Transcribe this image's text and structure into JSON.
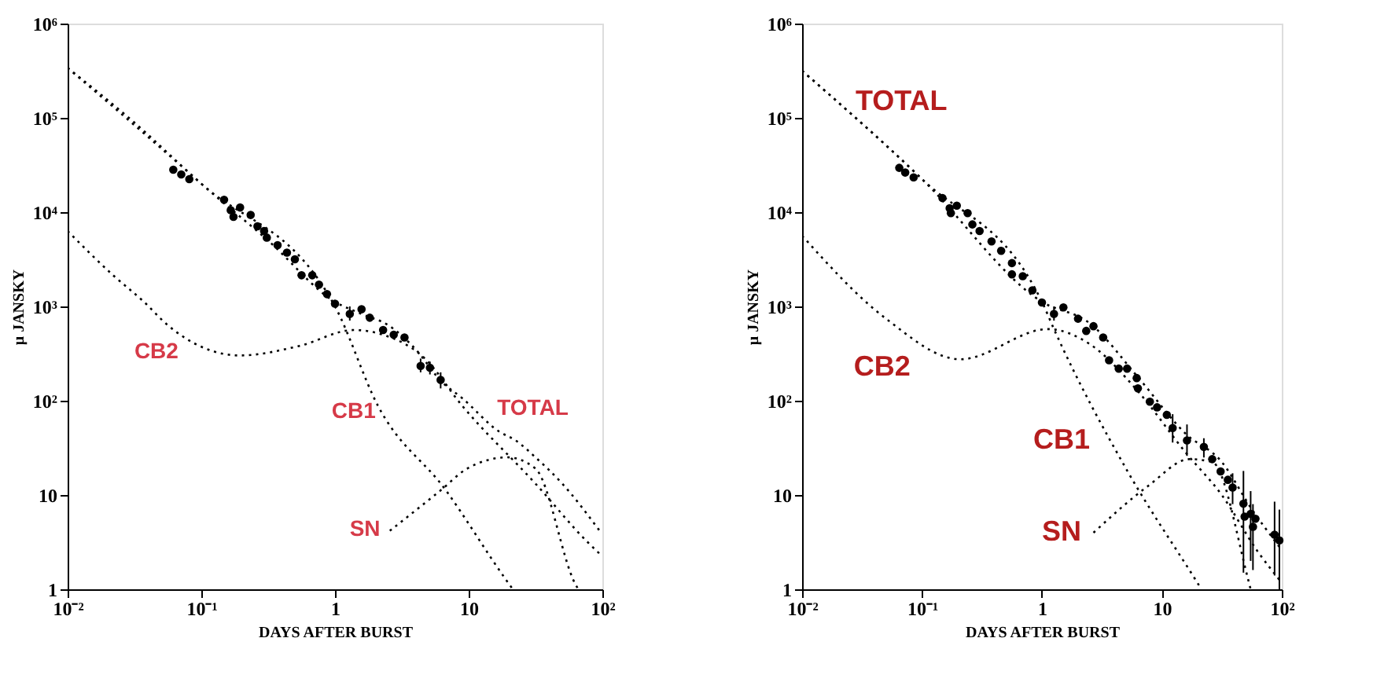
{
  "chart_data": [
    {
      "type": "line",
      "xlabel": "DAYS AFTER BURST",
      "ylabel": "μ JANSKY",
      "line_style": "dotted",
      "grid": false,
      "xlim": [
        0.01,
        100
      ],
      "ylim": [
        1,
        1000000
      ],
      "xticks": [
        {
          "value": 0.01,
          "label": "10⁻²"
        },
        {
          "value": 0.1,
          "label": "10⁻¹"
        },
        1,
        10,
        {
          "value": 100,
          "label": "10²"
        }
      ],
      "yticks": [
        1,
        10,
        {
          "value": 100,
          "label": "10²"
        },
        {
          "value": 1000,
          "label": "10³"
        },
        {
          "value": 10000,
          "label": "10⁴"
        },
        {
          "value": 100000,
          "label": "10⁵"
        },
        {
          "value": 1000000,
          "label": "10⁶"
        }
      ],
      "log": "xy",
      "series": [
        {
          "color": "#000000",
          "x": [
            0.01,
            0.0316,
            0.1,
            0.316,
            1,
            1.58,
            2.51,
            3.98,
            6.31,
            8.91,
            17,
            22.4,
            31.6,
            50.1,
            95.5
          ],
          "values": [
            339000,
            89000,
            20000,
            5000,
            1120,
            832,
            631,
            355,
            158,
            107,
            46.8,
            38,
            25.1,
            13.2,
            4.17
          ]
        },
        {
          "color": "#000000",
          "x": [
            0.01,
            0.1,
            1,
            2.09,
            6.76,
            18.6,
            21.4
          ],
          "values": [
            339000,
            20000,
            1000,
            89,
            11.2,
            1.32,
            1.0
          ]
        },
        {
          "color": "#000000",
          "x": [
            0.01,
            0.0219,
            0.0372,
            0.0562,
            0.195,
            0.537,
            1.38,
            2.29,
            4.68,
            8.91,
            31.6,
            77.6,
            100
          ],
          "values": [
            6310,
            2140,
            1120,
            631,
            302,
            380,
            562,
            501,
            282,
            89,
            13.2,
            3.16,
            2.24
          ]
        },
        {
          "color": "#000000",
          "x": [
            2.57,
            6.17,
            9.77,
            19.5,
            31.6,
            63.1,
            66.1
          ],
          "values": [
            4.17,
            11.2,
            19.1,
            25.1,
            19.1,
            1.12,
            1.0
          ]
        },
        {
          "type": "scatter",
          "color": "#000000",
          "marker": "circle",
          "x": [
            0.0617,
            0.0708,
            0.0813,
            0.148,
            0.166,
            0.174,
            0.195,
            0.234,
            0.263,
            0.295,
            0.309,
            0.372,
            0.437,
            0.501,
            0.562,
            0.676,
            0.759,
            0.871,
            1.0,
            1.29,
            1.58,
            1.82,
            2.29,
            2.75,
            3.31,
            4.37,
            5.13,
            6.17
          ],
          "values": [
            28200,
            25100,
            22400,
            13500,
            10500,
            8910,
            11200,
            9330,
            7080,
            6310,
            5370,
            4470,
            3720,
            3160,
            2140,
            2140,
            1700,
            1350,
            1070,
            832,
            933,
            759,
            562,
            501,
            468,
            234,
            224,
            166
          ],
          "errors": [
            null,
            null,
            null,
            null,
            null,
            null,
            null,
            null,
            null,
            null,
            null,
            null,
            null,
            null,
            null,
            null,
            null,
            null,
            null,
            [
              708,
              1000
            ],
            null,
            null,
            null,
            null,
            null,
            [
              200,
              280
            ],
            [
              190,
              260
            ],
            [
              135,
              200
            ]
          ]
        }
      ],
      "annotations": [
        "CB2",
        "CB1",
        "TOTAL",
        "SN"
      ]
    },
    {
      "type": "line",
      "xlabel": "DAYS AFTER BURST",
      "ylabel": "μ JANSKY",
      "line_style": "dotted",
      "grid": false,
      "xlim": [
        0.01,
        100
      ],
      "ylim": [
        1,
        1000000
      ],
      "xticks": [
        {
          "value": 0.01,
          "label": "10⁻²"
        },
        {
          "value": 0.1,
          "label": "10⁻¹"
        },
        1,
        10,
        {
          "value": 100,
          "label": "10²"
        }
      ],
      "yticks": [
        1,
        10,
        {
          "value": 100,
          "label": "10²"
        },
        {
          "value": 1000,
          "label": "10³"
        },
        {
          "value": 10000,
          "label": "10⁴"
        },
        {
          "value": 100000,
          "label": "10⁵"
        },
        {
          "value": 1000000,
          "label": "10⁶"
        }
      ],
      "log": "xy",
      "series": [
        {
          "color": "#000000",
          "x": [
            0.01,
            0.1,
            1,
            2.51,
            6.31,
            15.8,
            31.6,
            56.2,
            95.5
          ],
          "values": [
            316000,
            22400,
            1120,
            661,
            178,
            44.7,
            22.4,
            7.08,
            2.82
          ]
        },
        {
          "color": "#000000",
          "x": [
            0.01,
            0.1,
            1,
            1.26,
            5.13,
            19.1,
            21.4
          ],
          "values": [
            316000,
            22400,
            1120,
            575,
            18.2,
            1.26,
            1.0
          ]
        },
        {
          "color": "#000000",
          "x": [
            0.01,
            0.0501,
            0.209,
            1.12,
            2.51,
            6.31,
            15.8,
            31.6,
            63.1,
            95.5
          ],
          "values": [
            5620,
            741,
            275,
            575,
            398,
            126,
            28.2,
            10,
            2.51,
            1.26
          ]
        },
        {
          "color": "#000000",
          "x": [
            2.69,
            7.76,
            17,
            26.3,
            52.5,
            55
          ],
          "values": [
            3.98,
            12.6,
            24,
            22.4,
            1.26,
            1.0
          ]
        },
        {
          "type": "scatter",
          "color": "#000000",
          "marker": "circle",
          "x": [
            0.0646,
            0.0724,
            0.0851,
            0.148,
            0.17,
            0.174,
            0.195,
            0.24,
            0.263,
            0.302,
            0.38,
            0.457,
            0.562,
            0.562,
            0.692,
            0.832,
            1.0,
            1.26,
            1.51,
            2.0,
            2.34,
            2.69,
            3.24,
            3.63,
            4.37,
            5.13,
            6.17,
            6.31,
            7.94,
            9.12,
            11.0,
            12.3,
            16.2,
            22.4,
            26.3,
            30.9,
            35.5,
            38.9,
            47.9,
            49,
            55,
            57.5,
            60.3,
            87.1,
            95.5
          ],
          "values": [
            29500,
            26300,
            23400,
            14100,
            11000,
            9770,
            11700,
            9770,
            7410,
            6310,
            4900,
            3890,
            2880,
            2190,
            2090,
            1480,
            1100,
            832,
            977,
            741,
            550,
            617,
            468,
            269,
            219,
            219,
            174,
            135,
            97.7,
            85.1,
            70.8,
            51.3,
            38,
            32.4,
            24,
            17.8,
            14.5,
            12,
            8.1,
            5.9,
            6.3,
            4.6,
            5.6,
            3.8,
            3.3
          ],
          "errors": [
            null,
            null,
            null,
            null,
            null,
            null,
            null,
            null,
            null,
            null,
            null,
            null,
            null,
            null,
            null,
            null,
            null,
            [
              708,
              1000
            ],
            null,
            null,
            null,
            null,
            null,
            null,
            null,
            null,
            null,
            null,
            null,
            null,
            null,
            [
              36,
              72
            ],
            [
              26,
              56
            ],
            [
              25,
              40
            ],
            null,
            null,
            null,
            [
              8,
              17
            ],
            [
              1.5,
              18
            ],
            null,
            [
              2,
              11
            ],
            [
              1.6,
              8
            ],
            null,
            [
              1.4,
              8.5
            ],
            [
              1,
              7
            ]
          ]
        }
      ],
      "annotations": [
        "TOTAL",
        "CB2",
        "CB1",
        "SN"
      ]
    }
  ]
}
